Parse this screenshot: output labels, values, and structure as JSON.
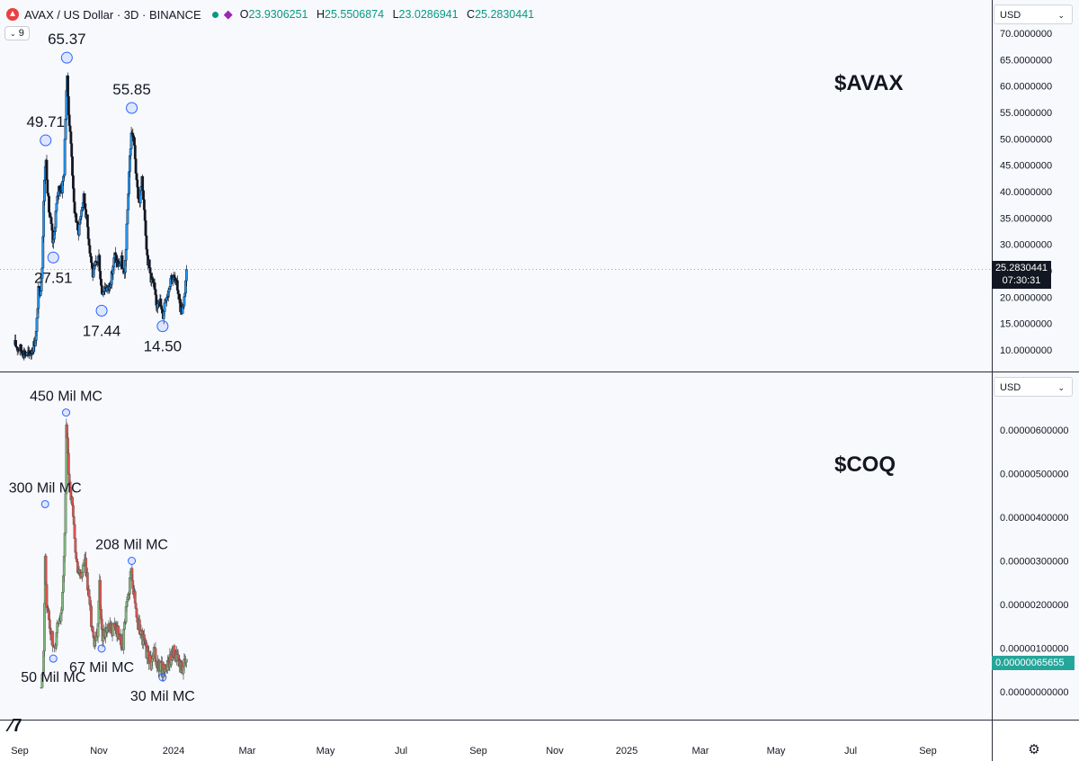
{
  "header": {
    "symbol": "AVAX / US Dollar · 3D · BINANCE",
    "ohlc": {
      "o_label": "O",
      "o": "23.9306251",
      "h_label": "H",
      "h": "25.5506874",
      "l_label": "L",
      "l": "23.0286941",
      "c_label": "C",
      "c": "25.2830441"
    },
    "indicator_badge": "9"
  },
  "price_scale_unit": "USD",
  "time_axis": [
    "Sep",
    "Nov",
    "2024",
    "Mar",
    "May",
    "Jul",
    "Sep",
    "Nov",
    "2025",
    "Mar",
    "May",
    "Jul",
    "Sep"
  ],
  "chart_data": [
    {
      "type": "candlestick",
      "title": "$AVAX",
      "ylim": [
        7,
        74
      ],
      "y_ticks": [
        "70.0000000",
        "65.0000000",
        "60.0000000",
        "55.0000000",
        "50.0000000",
        "45.0000000",
        "40.0000000",
        "35.0000000",
        "30.0000000",
        "25.0000000",
        "20.0000000",
        "15.0000000",
        "10.0000000"
      ],
      "y_tick_values": [
        70,
        65,
        60,
        55,
        50,
        45,
        40,
        35,
        30,
        25,
        20,
        15,
        10
      ],
      "last_price": {
        "value": "25.2830441",
        "countdown": "07:30:31"
      },
      "annotations": [
        {
          "label": "49.71",
          "date": "2023-12-22",
          "value": 49.71,
          "pos": "above"
        },
        {
          "label": "27.51",
          "date": "2024-01-22",
          "value": 27.51,
          "pos": "below"
        },
        {
          "label": "65.37",
          "date": "2024-03-17",
          "value": 65.37,
          "pos": "above"
        },
        {
          "label": "17.44",
          "date": "2024-08-05",
          "value": 17.44,
          "pos": "below"
        },
        {
          "label": "55.85",
          "date": "2024-12-05",
          "value": 55.85,
          "pos": "above"
        },
        {
          "label": "14.50",
          "date": "2025-04-09",
          "value": 14.5,
          "pos": "below"
        }
      ],
      "anchors": [
        [
          "2023-08-20",
          11.0
        ],
        [
          "2023-09-10",
          10.2
        ],
        [
          "2023-10-01",
          9.3
        ],
        [
          "2023-10-15",
          9.1
        ],
        [
          "2023-10-25",
          9.8
        ],
        [
          "2023-11-05",
          11.0
        ],
        [
          "2023-11-15",
          13.5
        ],
        [
          "2023-11-22",
          21.0
        ],
        [
          "2023-12-01",
          21.5
        ],
        [
          "2023-12-08",
          26.0
        ],
        [
          "2023-12-14",
          38.0
        ],
        [
          "2023-12-22",
          47.0
        ],
        [
          "2024-01-03",
          37.0
        ],
        [
          "2024-01-12",
          34.0
        ],
        [
          "2024-01-22",
          29.5
        ],
        [
          "2024-02-01",
          36.0
        ],
        [
          "2024-02-14",
          41.0
        ],
        [
          "2024-02-26",
          40.5
        ],
        [
          "2024-03-06",
          44.0
        ],
        [
          "2024-03-14",
          58.0
        ],
        [
          "2024-03-17",
          62.0
        ],
        [
          "2024-03-27",
          53.0
        ],
        [
          "2024-04-06",
          47.0
        ],
        [
          "2024-04-13",
          38.0
        ],
        [
          "2024-04-20",
          36.0
        ],
        [
          "2024-05-01",
          32.0
        ],
        [
          "2024-05-10",
          35.0
        ],
        [
          "2024-05-24",
          39.0
        ],
        [
          "2024-06-03",
          36.0
        ],
        [
          "2024-06-18",
          29.0
        ],
        [
          "2024-07-01",
          24.0
        ],
        [
          "2024-07-15",
          26.5
        ],
        [
          "2024-07-24",
          28.0
        ],
        [
          "2024-08-05",
          21.0
        ],
        [
          "2024-08-20",
          22.0
        ],
        [
          "2024-09-01",
          21.5
        ],
        [
          "2024-09-15",
          24.0
        ],
        [
          "2024-09-27",
          28.0
        ],
        [
          "2024-10-10",
          26.0
        ],
        [
          "2024-10-25",
          27.0
        ],
        [
          "2024-11-05",
          23.0
        ],
        [
          "2024-11-15",
          33.0
        ],
        [
          "2024-11-25",
          45.0
        ],
        [
          "2024-12-05",
          52.0
        ],
        [
          "2024-12-17",
          48.0
        ],
        [
          "2024-12-25",
          41.0
        ],
        [
          "2025-01-05",
          38.0
        ],
        [
          "2025-01-15",
          42.0
        ],
        [
          "2025-01-25",
          37.0
        ],
        [
          "2025-02-05",
          28.0
        ],
        [
          "2025-02-20",
          24.0
        ],
        [
          "2025-03-05",
          22.0
        ],
        [
          "2025-03-15",
          18.0
        ],
        [
          "2025-03-25",
          20.5
        ],
        [
          "2025-04-09",
          16.0
        ],
        [
          "2025-04-20",
          20.0
        ],
        [
          "2025-05-01",
          21.0
        ],
        [
          "2025-05-12",
          24.0
        ],
        [
          "2025-05-25",
          23.5
        ],
        [
          "2025-06-10",
          21.5
        ],
        [
          "2025-06-22",
          17.5
        ],
        [
          "2025-07-03",
          18.0
        ],
        [
          "2025-07-12",
          23.5
        ],
        [
          "2025-07-17",
          25.28
        ]
      ]
    },
    {
      "type": "candlestick",
      "title": "$COQ",
      "ylim": [
        -3e-07,
        6.8e-06
      ],
      "y_ticks": [
        "0.00000600000",
        "0.00000500000",
        "0.00000400000",
        "0.00000300000",
        "0.00000200000",
        "0.00000100000",
        "0.00000000000"
      ],
      "y_tick_values": [
        6e-06,
        5e-06,
        4e-06,
        3e-06,
        2e-06,
        1e-06,
        0
      ],
      "last_price": {
        "value": "0.00000065655"
      },
      "annotations": [
        {
          "label": "300 Mil MC",
          "date": "2023-12-20",
          "value": 4.3e-06,
          "pos": "above"
        },
        {
          "label": "50 Mil MC",
          "date": "2024-01-22",
          "value": 7.6e-07,
          "pos": "below"
        },
        {
          "label": "450 Mil MC",
          "date": "2024-03-14",
          "value": 6.4e-06,
          "pos": "above"
        },
        {
          "label": "67 Mil MC",
          "date": "2024-08-05",
          "value": 9.9e-07,
          "pos": "below"
        },
        {
          "label": "208 Mil MC",
          "date": "2024-12-05",
          "value": 3e-06,
          "pos": "above"
        },
        {
          "label": "30 Mil MC",
          "date": "2025-04-09",
          "value": 3.3e-07,
          "pos": "below"
        }
      ],
      "anchors": [
        [
          "2023-12-05",
          1e-07
        ],
        [
          "2023-12-12",
          4e-07
        ],
        [
          "2023-12-20",
          3e-06
        ],
        [
          "2023-12-26",
          2.1e-06
        ],
        [
          "2024-01-05",
          1.6e-06
        ],
        [
          "2024-01-15",
          1.3e-06
        ],
        [
          "2024-01-24",
          9e-07
        ],
        [
          "2024-02-05",
          1.4e-06
        ],
        [
          "2024-02-20",
          1.5e-06
        ],
        [
          "2024-03-01",
          2.2e-06
        ],
        [
          "2024-03-10",
          3.8e-06
        ],
        [
          "2024-03-15",
          6e-06
        ],
        [
          "2024-03-22",
          5.2e-06
        ],
        [
          "2024-04-06",
          4.3e-06
        ],
        [
          "2024-04-16",
          3.6e-06
        ],
        [
          "2024-04-25",
          2.9e-06
        ],
        [
          "2024-05-15",
          2.6e-06
        ],
        [
          "2024-05-28",
          3e-06
        ],
        [
          "2024-06-10",
          2.4e-06
        ],
        [
          "2024-06-25",
          1.6e-06
        ],
        [
          "2024-07-05",
          1.2e-06
        ],
        [
          "2024-07-20",
          1.4e-06
        ],
        [
          "2024-07-27",
          2.5e-06
        ],
        [
          "2024-08-05",
          1.3e-06
        ],
        [
          "2024-08-20",
          1.4e-06
        ],
        [
          "2024-09-10",
          1.4e-06
        ],
        [
          "2024-09-28",
          1.5e-06
        ],
        [
          "2024-10-15",
          1.3e-06
        ],
        [
          "2024-10-30",
          1.1e-06
        ],
        [
          "2024-11-12",
          1.8e-06
        ],
        [
          "2024-11-28",
          2.6e-06
        ],
        [
          "2024-12-05",
          2.8e-06
        ],
        [
          "2024-12-15",
          2.2e-06
        ],
        [
          "2024-12-28",
          1.6e-06
        ],
        [
          "2025-01-10",
          1.4e-06
        ],
        [
          "2025-01-25",
          1.1e-06
        ],
        [
          "2025-02-10",
          8e-07
        ],
        [
          "2025-02-22",
          6e-07
        ],
        [
          "2025-03-05",
          9e-07
        ],
        [
          "2025-03-18",
          6e-07
        ],
        [
          "2025-04-09",
          5e-07
        ],
        [
          "2025-04-25",
          6e-07
        ],
        [
          "2025-05-12",
          8e-07
        ],
        [
          "2025-05-25",
          9.5e-07
        ],
        [
          "2025-06-10",
          7e-07
        ],
        [
          "2025-06-25",
          5.5e-07
        ],
        [
          "2025-07-10",
          6e-07
        ],
        [
          "2025-07-17",
          6.6e-07
        ]
      ]
    }
  ]
}
